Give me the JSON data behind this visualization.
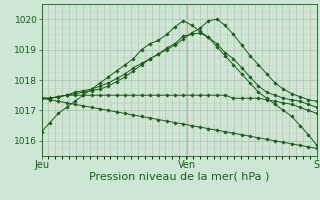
{
  "background_color": "#cce8d4",
  "plot_bg_color": "#cce8d4",
  "line_color": "#1a5c1a",
  "marker_color": "#1a5c1a",
  "tick_color": "#1a5c1a",
  "xlabel": "Pression niveau de la mer( hPa )",
  "xlabel_fontsize": 8,
  "ylim": [
    1015.5,
    1020.5
  ],
  "yticks": [
    1016,
    1017,
    1018,
    1019,
    1020
  ],
  "xtick_labels": [
    "Jeu",
    "Ven",
    "S"
  ],
  "xtick_positions": [
    0.0,
    0.527,
    1.0
  ],
  "n_vertical_minor": 40,
  "series": [
    [
      1016.3,
      1016.6,
      1016.9,
      1017.1,
      1017.3,
      1017.5,
      1017.7,
      1017.9,
      1018.1,
      1018.3,
      1018.5,
      1018.7,
      1019.0,
      1019.2,
      1019.3,
      1019.5,
      1019.75,
      1019.95,
      1019.8,
      1019.6,
      1019.4,
      1019.1,
      1018.8,
      1018.5,
      1018.2,
      1017.9,
      1017.6,
      1017.4,
      1017.2,
      1017.0,
      1016.8,
      1016.5,
      1016.2,
      1015.85
    ],
    [
      1017.4,
      1017.4,
      1017.45,
      1017.5,
      1017.6,
      1017.65,
      1017.7,
      1017.8,
      1017.9,
      1018.05,
      1018.2,
      1018.4,
      1018.55,
      1018.7,
      1018.85,
      1019.05,
      1019.2,
      1019.45,
      1019.5,
      1019.55,
      1019.4,
      1019.2,
      1018.9,
      1018.7,
      1018.4,
      1018.1,
      1017.8,
      1017.6,
      1017.5,
      1017.4,
      1017.35,
      1017.3,
      1017.2,
      1017.1
    ],
    [
      1017.4,
      1017.4,
      1017.45,
      1017.5,
      1017.55,
      1017.6,
      1017.65,
      1017.7,
      1017.8,
      1017.95,
      1018.1,
      1018.3,
      1018.5,
      1018.7,
      1018.85,
      1019.0,
      1019.15,
      1019.35,
      1019.55,
      1019.7,
      1019.95,
      1020.0,
      1019.8,
      1019.5,
      1019.15,
      1018.8,
      1018.5,
      1018.2,
      1017.9,
      1017.7,
      1017.55,
      1017.45,
      1017.35,
      1017.3
    ],
    [
      1017.4,
      1017.4,
      1017.45,
      1017.5,
      1017.5,
      1017.5,
      1017.5,
      1017.5,
      1017.5,
      1017.5,
      1017.5,
      1017.5,
      1017.5,
      1017.5,
      1017.5,
      1017.5,
      1017.5,
      1017.5,
      1017.5,
      1017.5,
      1017.5,
      1017.5,
      1017.5,
      1017.4,
      1017.4,
      1017.4,
      1017.4,
      1017.35,
      1017.3,
      1017.25,
      1017.2,
      1017.1,
      1017.0,
      1016.9
    ],
    [
      1017.4,
      1017.35,
      1017.3,
      1017.25,
      1017.2,
      1017.15,
      1017.1,
      1017.05,
      1017.0,
      1016.95,
      1016.9,
      1016.85,
      1016.8,
      1016.75,
      1016.7,
      1016.65,
      1016.6,
      1016.55,
      1016.5,
      1016.45,
      1016.4,
      1016.35,
      1016.3,
      1016.25,
      1016.2,
      1016.15,
      1016.1,
      1016.05,
      1016.0,
      1015.95,
      1015.9,
      1015.85,
      1015.8,
      1015.75
    ]
  ]
}
